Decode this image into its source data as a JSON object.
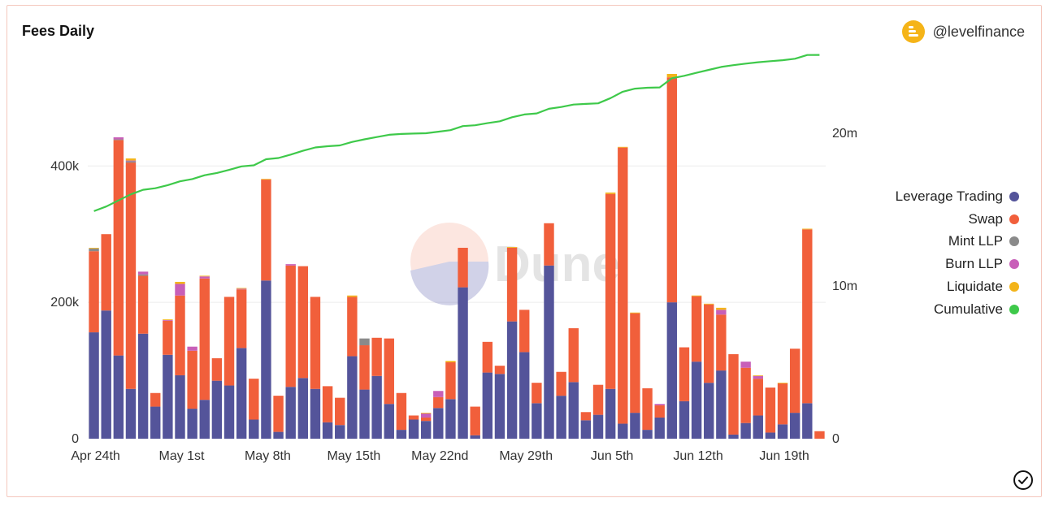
{
  "header": {
    "title": "Fees Daily",
    "brand": "@levelfinance"
  },
  "colors": {
    "leverage": "#54549a",
    "swap": "#f15f3b",
    "mint": "#8a8a8a",
    "burn": "#c85fb8",
    "liquidate": "#f3b41a",
    "cumulative": "#3ec94a",
    "grid": "#ececec"
  },
  "chart_data": {
    "type": "bar",
    "title": "Fees Daily",
    "stacked": true,
    "x_tick_labels": [
      "Apr 24th",
      "May 1st",
      "May 8th",
      "May 15th",
      "May 22nd",
      "May 29th",
      "Jun 5th",
      "Jun 12th",
      "Jun 19th"
    ],
    "x_tick_days": [
      0,
      7,
      14,
      21,
      28,
      35,
      42,
      49,
      56
    ],
    "left_axis": {
      "ticks": [
        0,
        200000,
        400000
      ],
      "tick_labels": [
        "0",
        "200k",
        "400k"
      ],
      "ylim": [
        0,
        560000
      ]
    },
    "right_axis": {
      "ticks": [
        0,
        10000000,
        20000000
      ],
      "tick_labels": [
        "0",
        "10m",
        "20m"
      ],
      "ylim": [
        0,
        25000000
      ]
    },
    "series": [
      {
        "name": "Leverage Trading",
        "color_key": "leverage",
        "values": [
          156000,
          188000,
          122000,
          73000,
          154000,
          47000,
          123000,
          93000,
          44000,
          57000,
          85000,
          78000,
          133000,
          28000,
          232000,
          10000,
          76000,
          89000,
          73000,
          24000,
          20000,
          121000,
          72000,
          92000,
          51000,
          13000,
          28000,
          26000,
          45000,
          58000,
          222000,
          5000,
          97000,
          95000,
          172000,
          127000,
          52000,
          254000,
          63000,
          83000,
          27000,
          35000,
          73000,
          22000,
          38000,
          13000,
          31000,
          200000,
          55000,
          113000,
          82000,
          100000,
          6000,
          23000,
          34000,
          9000,
          21000,
          38000,
          52000,
          0
        ]
      },
      {
        "name": "Swap",
        "color_key": "swap",
        "values": [
          119000,
          112000,
          316000,
          332000,
          85000,
          20000,
          50000,
          117000,
          85000,
          178000,
          33000,
          130000,
          86000,
          60000,
          148000,
          53000,
          178000,
          164000,
          135000,
          53000,
          40000,
          87000,
          65000,
          56000,
          96000,
          54000,
          6000,
          5000,
          16000,
          54000,
          58000,
          42000,
          45000,
          12000,
          108000,
          62000,
          30000,
          62000,
          35000,
          79000,
          12000,
          44000,
          286000,
          405000,
          146000,
          61000,
          18000,
          330000,
          79000,
          96000,
          115000,
          82000,
          118000,
          81000,
          54000,
          66000,
          60000,
          94000,
          255000,
          11000
        ]
      },
      {
        "name": "Mint LLP",
        "color_key": "mint",
        "values": [
          4000,
          0,
          1000,
          2000,
          2000,
          0,
          0,
          0,
          0,
          0,
          0,
          0,
          0,
          0,
          0,
          0,
          0,
          0,
          0,
          0,
          0,
          0,
          10000,
          0,
          0,
          0,
          0,
          0,
          0,
          0,
          0,
          0,
          0,
          0,
          0,
          0,
          0,
          0,
          0,
          0,
          0,
          0,
          0,
          0,
          0,
          0,
          0,
          0,
          0,
          0,
          0,
          0,
          0,
          0,
          0,
          0,
          0,
          0,
          0,
          0
        ]
      },
      {
        "name": "Burn LLP",
        "color_key": "burn",
        "values": [
          0,
          0,
          3000,
          1000,
          4000,
          0,
          1000,
          17000,
          6000,
          3000,
          0,
          0,
          1000,
          0,
          0,
          0,
          2000,
          0,
          0,
          0,
          0,
          0,
          0,
          0,
          0,
          0,
          0,
          6000,
          9000,
          0,
          0,
          0,
          0,
          0,
          0,
          0,
          0,
          0,
          0,
          0,
          0,
          0,
          0,
          0,
          0,
          0,
          2000,
          0,
          0,
          0,
          0,
          7000,
          0,
          9000,
          4000,
          0,
          0,
          0,
          0,
          0
        ]
      },
      {
        "name": "Liquidate",
        "color_key": "liquidate",
        "values": [
          1000,
          0,
          0,
          3000,
          0,
          0,
          1000,
          3000,
          0,
          1000,
          0,
          0,
          1000,
          0,
          1000,
          0,
          0,
          0,
          0,
          0,
          0,
          2000,
          0,
          0,
          0,
          0,
          0,
          1000,
          0,
          2000,
          0,
          0,
          0,
          0,
          1000,
          0,
          0,
          0,
          0,
          0,
          0,
          0,
          2000,
          1000,
          1000,
          0,
          0,
          5000,
          0,
          1000,
          1000,
          3000,
          0,
          0,
          1000,
          0,
          1000,
          0,
          1000,
          0
        ]
      },
      {
        "name": "Cumulative",
        "color_key": "cumulative",
        "axis": "right",
        "type": "line",
        "values": [
          14900000,
          15200000,
          15600000,
          16000000,
          16300000,
          16400000,
          16600000,
          16850000,
          17000000,
          17250000,
          17400000,
          17600000,
          17830000,
          17900000,
          18300000,
          18380000,
          18600000,
          18850000,
          19070000,
          19150000,
          19200000,
          19430000,
          19600000,
          19750000,
          19900000,
          19950000,
          19980000,
          20000000,
          20100000,
          20200000,
          20470000,
          20520000,
          20660000,
          20780000,
          21050000,
          21230000,
          21300000,
          21600000,
          21720000,
          21880000,
          21920000,
          21960000,
          22300000,
          22720000,
          22920000,
          22980000,
          23000000,
          23600000,
          23760000,
          23960000,
          24150000,
          24340000,
          24460000,
          24560000,
          24650000,
          24720000,
          24780000,
          24880000,
          25120000,
          25130000
        ]
      }
    ],
    "legend": {
      "position": "right",
      "entries": [
        {
          "label": "Leverage Trading",
          "color_key": "leverage"
        },
        {
          "label": "Swap",
          "color_key": "swap"
        },
        {
          "label": "Mint LLP",
          "color_key": "mint"
        },
        {
          "label": "Burn LLP",
          "color_key": "burn"
        },
        {
          "label": "Liquidate",
          "color_key": "liquidate"
        },
        {
          "label": "Cumulative",
          "color_key": "cumulative"
        }
      ]
    },
    "watermark": "Dune"
  }
}
